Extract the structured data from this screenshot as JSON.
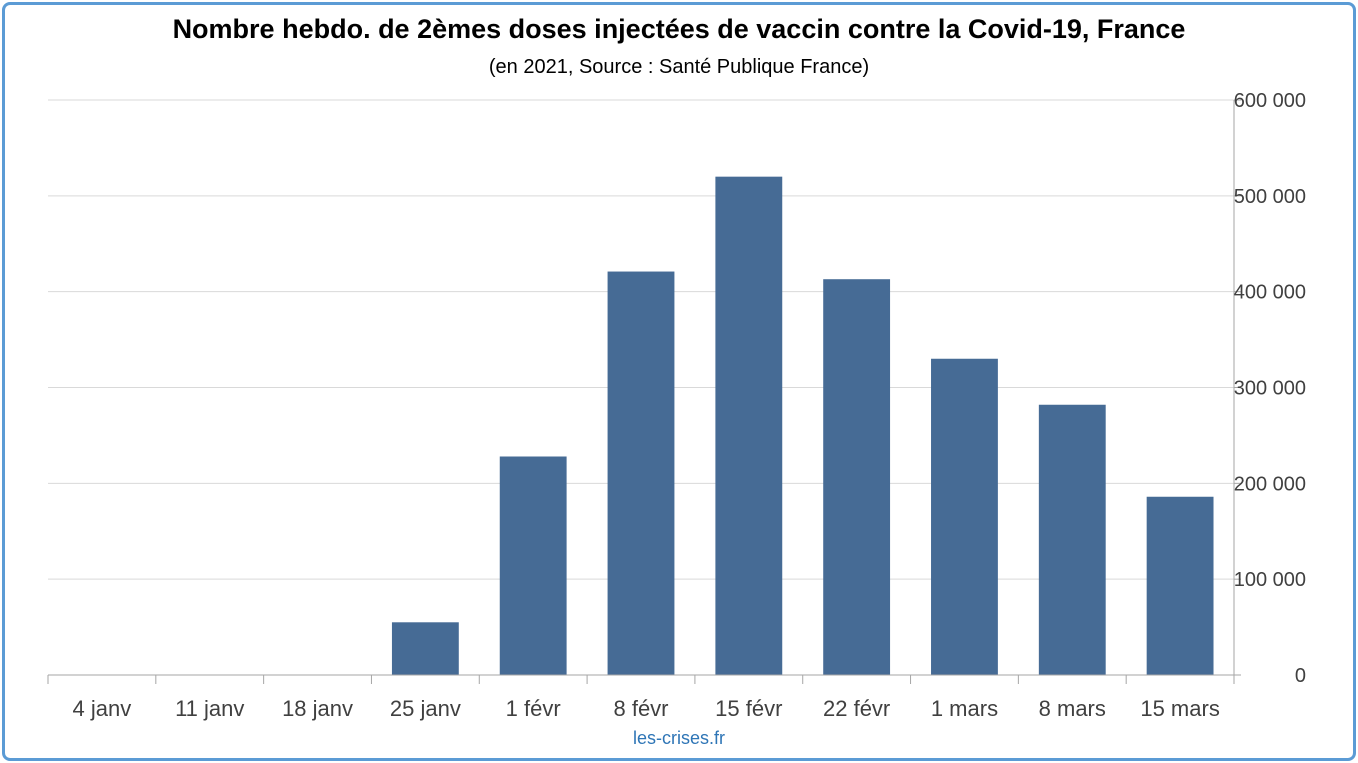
{
  "chart_data": {
    "type": "bar",
    "title": "Nombre hebdo. de 2èmes doses injectées de vaccin contre la Covid-19, France",
    "subtitle": "(en 2021, Source : Santé Publique France)",
    "categories": [
      "4 janv",
      "11 janv",
      "18 janv",
      "25 janv",
      "1 févr",
      "8 févr",
      "15 févr",
      "22 févr",
      "1 mars",
      "8 mars",
      "15 mars"
    ],
    "values": [
      0,
      0,
      0,
      55000,
      228000,
      421000,
      520000,
      413000,
      330000,
      282000,
      186000
    ],
    "ylim": [
      0,
      600000
    ],
    "yticks": [
      "0",
      "100 000",
      "200 000",
      "300 000",
      "400 000",
      "500 000",
      "600 000"
    ],
    "y_axis_side": "right",
    "grid": true,
    "bar_color": "#466b95",
    "grid_color": "#d9d9d9",
    "axis_color": "#a6a6a6"
  },
  "footer": {
    "source": "les-crises.fr"
  }
}
